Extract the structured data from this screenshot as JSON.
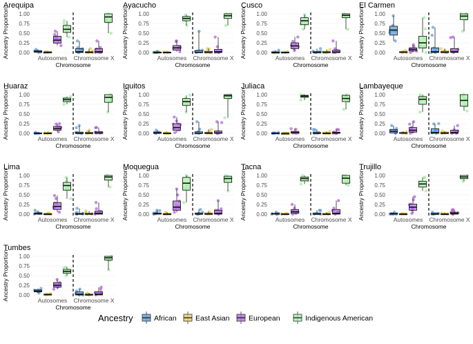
{
  "chart_data": {
    "type": "boxplot",
    "xlabel": "Chromosome",
    "ylabel": "Ancestry Proportion",
    "ylim": [
      0,
      1
    ],
    "yticks": [
      "0.00",
      "0.25",
      "0.50",
      "0.75",
      "1.00"
    ],
    "categories": [
      "Autosomes",
      "Chromosome X"
    ],
    "legend": {
      "title": "Ancestry",
      "position": "bottom",
      "items": [
        {
          "name": "African",
          "color": "#4a90d9"
        },
        {
          "name": "East Asian",
          "color": "#e0c84a"
        },
        {
          "name": "European",
          "color": "#a64dd9"
        },
        {
          "name": "Indigenous American",
          "color": "#90ee90"
        }
      ]
    },
    "panels": [
      {
        "name": "Arequipa",
        "autosomes": [
          [
            0,
            0.01,
            0.02,
            0.05,
            0.08
          ],
          [
            0,
            0,
            0.01,
            0.01,
            0.02
          ],
          [
            0.18,
            0.24,
            0.32,
            0.42,
            0.55
          ],
          [
            0.4,
            0.52,
            0.6,
            0.7,
            0.82
          ]
        ],
        "chrx": [
          [
            0,
            0,
            0.02,
            0.1,
            0.3
          ],
          [
            0,
            0,
            0,
            0.02,
            0.1
          ],
          [
            0,
            0,
            0.02,
            0.1,
            0.3
          ],
          [
            0.5,
            0.78,
            0.92,
            1,
            1
          ]
        ]
      },
      {
        "name": "Ayacucho",
        "autosomes": [
          [
            0,
            0,
            0,
            0.01,
            0.03
          ],
          [
            0,
            0,
            0,
            0.01,
            0.02
          ],
          [
            0.02,
            0.06,
            0.12,
            0.18,
            0.3
          ],
          [
            0.7,
            0.82,
            0.88,
            0.93,
            0.97
          ]
        ],
        "chrx": [
          [
            0,
            0,
            0,
            0.05,
            0.55
          ],
          [
            0,
            0,
            0,
            0.03,
            0.1
          ],
          [
            0,
            0,
            0.02,
            0.08,
            0.4
          ],
          [
            0.7,
            0.88,
            0.95,
            1,
            1
          ]
        ]
      },
      {
        "name": "Cusco",
        "autosomes": [
          [
            0,
            0,
            0,
            0.01,
            0.06
          ],
          [
            0,
            0,
            0,
            0.01,
            0.02
          ],
          [
            0.05,
            0.1,
            0.17,
            0.25,
            0.4
          ],
          [
            0.6,
            0.72,
            0.82,
            0.9,
            0.98
          ]
        ],
        "chrx": [
          [
            0,
            0,
            0,
            0.02,
            0.1
          ],
          [
            0,
            0,
            0,
            0.02,
            0.08
          ],
          [
            0,
            0,
            0.01,
            0.06,
            0.3
          ],
          [
            0.6,
            0.9,
            0.96,
            1,
            1
          ]
        ]
      },
      {
        "name": "El Carmen",
        "autosomes": [
          [
            0.3,
            0.45,
            0.58,
            0.68,
            0.95
          ],
          [
            0,
            0,
            0.01,
            0.02,
            0.05
          ],
          [
            0,
            0.04,
            0.08,
            0.12,
            0.2
          ],
          [
            0,
            0.12,
            0.25,
            0.42,
            0.9
          ]
        ],
        "chrx": [
          [
            0,
            0,
            0.02,
            0.12,
            0.65
          ],
          [
            0,
            0,
            0,
            0.03,
            0.1
          ],
          [
            0,
            0,
            0.02,
            0.1,
            0.4
          ],
          [
            0.55,
            0.85,
            0.94,
            1,
            1
          ]
        ]
      },
      {
        "name": "Huaraz",
        "autosomes": [
          [
            0,
            0,
            0,
            0.01,
            0.02
          ],
          [
            0,
            0,
            0,
            0.01,
            0.02
          ],
          [
            0.04,
            0.08,
            0.12,
            0.18,
            0.25
          ],
          [
            0.75,
            0.82,
            0.87,
            0.91,
            0.95
          ]
        ],
        "chrx": [
          [
            0,
            0,
            0,
            0.03,
            0.2
          ],
          [
            0,
            0,
            0,
            0.02,
            0.08
          ],
          [
            0,
            0,
            0.01,
            0.04,
            0.15
          ],
          [
            0.55,
            0.8,
            0.93,
            1,
            1
          ]
        ]
      },
      {
        "name": "Iquitos",
        "autosomes": [
          [
            0,
            0,
            0.01,
            0.03,
            0.08
          ],
          [
            0,
            0,
            0,
            0.01,
            0.02
          ],
          [
            0.02,
            0.08,
            0.15,
            0.25,
            0.42
          ],
          [
            0.55,
            0.72,
            0.82,
            0.9,
            0.98
          ]
        ],
        "chrx": [
          [
            0,
            0,
            0,
            0.04,
            0.3
          ],
          [
            0,
            0,
            0,
            0.02,
            0.1
          ],
          [
            0,
            0,
            0.01,
            0.06,
            0.3
          ],
          [
            0.4,
            0.9,
            0.97,
            1,
            1
          ]
        ]
      },
      {
        "name": "Juliaca",
        "autosomes": [
          [
            0,
            0,
            0,
            0.01,
            0.02
          ],
          [
            0,
            0,
            0,
            0,
            0.01
          ],
          [
            0,
            0.01,
            0.02,
            0.05,
            0.12
          ],
          [
            0.86,
            0.93,
            0.96,
            0.98,
            1
          ]
        ],
        "chrx": [
          [
            0,
            0,
            0,
            0.02,
            0.1
          ],
          [
            0,
            0,
            0,
            0.01,
            0.05
          ],
          [
            0,
            0,
            0.01,
            0.03,
            0.1
          ],
          [
            0.62,
            0.82,
            0.9,
            0.98,
            1
          ]
        ]
      },
      {
        "name": "Lambayeque",
        "autosomes": [
          [
            0,
            0.01,
            0.05,
            0.1,
            0.2
          ],
          [
            0,
            0,
            0.01,
            0.02,
            0.04
          ],
          [
            0,
            0.03,
            0.08,
            0.15,
            0.3
          ],
          [
            0.55,
            0.75,
            0.88,
            0.95,
            1
          ]
        ],
        "chrx": [
          [
            0,
            0,
            0.02,
            0.12,
            0.25
          ],
          [
            0,
            0,
            0,
            0.02,
            0.06
          ],
          [
            0,
            0,
            0.02,
            0.08,
            0.2
          ],
          [
            0.58,
            0.7,
            0.85,
            1,
            1
          ]
        ]
      },
      {
        "name": "Lima",
        "autosomes": [
          [
            0,
            0,
            0.01,
            0.03,
            0.1
          ],
          [
            0,
            0,
            0,
            0.01,
            0.03
          ],
          [
            0.05,
            0.12,
            0.2,
            0.3,
            0.48
          ],
          [
            0.4,
            0.62,
            0.74,
            0.82,
            0.95
          ]
        ],
        "chrx": [
          [
            0,
            0,
            0,
            0.02,
            0.15
          ],
          [
            0,
            0,
            0,
            0.02,
            0.08
          ],
          [
            0,
            0,
            0.02,
            0.08,
            0.3
          ],
          [
            0.7,
            0.88,
            0.96,
            1,
            1
          ]
        ]
      },
      {
        "name": "Moquegua",
        "autosomes": [
          [
            0,
            0,
            0.01,
            0.03,
            0.1
          ],
          [
            0,
            0,
            0,
            0.01,
            0.05
          ],
          [
            0.05,
            0.1,
            0.18,
            0.34,
            0.65
          ],
          [
            0.3,
            0.62,
            0.8,
            0.95,
            1
          ]
        ],
        "chrx": [
          [
            0,
            0,
            0,
            0.03,
            0.12
          ],
          [
            0,
            0,
            0,
            0.02,
            0.06
          ],
          [
            0,
            0,
            0.02,
            0.1,
            0.35
          ],
          [
            0.6,
            0.82,
            0.92,
            0.98,
            1
          ]
        ]
      },
      {
        "name": "Tacna",
        "autosomes": [
          [
            0,
            0,
            0.01,
            0.02,
            0.05
          ],
          [
            0,
            0,
            0,
            0.01,
            0.02
          ],
          [
            0,
            0.02,
            0.06,
            0.12,
            0.25
          ],
          [
            0.78,
            0.86,
            0.92,
            0.96,
            1
          ]
        ],
        "chrx": [
          [
            0,
            0,
            0,
            0.02,
            0.1
          ],
          [
            0,
            0,
            0,
            0.01,
            0.05
          ],
          [
            0,
            0,
            0.02,
            0.12,
            0.35
          ],
          [
            0.75,
            0.8,
            0.93,
            1,
            1
          ]
        ]
      },
      {
        "name": "Trujillo",
        "autosomes": [
          [
            0,
            0,
            0.01,
            0.02,
            0.05
          ],
          [
            0,
            0,
            0,
            0.01,
            0.02
          ],
          [
            0.02,
            0.1,
            0.18,
            0.26,
            0.45
          ],
          [
            0.6,
            0.7,
            0.78,
            0.85,
            0.95
          ]
        ],
        "chrx": [
          [
            0,
            0,
            0,
            0.02,
            0.05
          ],
          [
            0,
            0,
            0,
            0.01,
            0.03
          ],
          [
            0,
            0,
            0.02,
            0.05,
            0.12
          ],
          [
            0.85,
            0.92,
            0.96,
            1,
            1
          ]
        ]
      },
      {
        "name": "Tumbes",
        "autosomes": [
          [
            0.05,
            0.08,
            0.1,
            0.13,
            0.17
          ],
          [
            0,
            0.01,
            0.01,
            0.02,
            0.03
          ],
          [
            0.15,
            0.2,
            0.25,
            0.32,
            0.4
          ],
          [
            0.5,
            0.56,
            0.61,
            0.66,
            0.72
          ]
        ],
        "chrx": [
          [
            0,
            0,
            0.02,
            0.08,
            0.15
          ],
          [
            0,
            0,
            0,
            0.02,
            0.05
          ],
          [
            0,
            0,
            0.02,
            0.08,
            0.2
          ],
          [
            0.65,
            0.9,
            0.96,
            1,
            1
          ]
        ]
      }
    ]
  }
}
